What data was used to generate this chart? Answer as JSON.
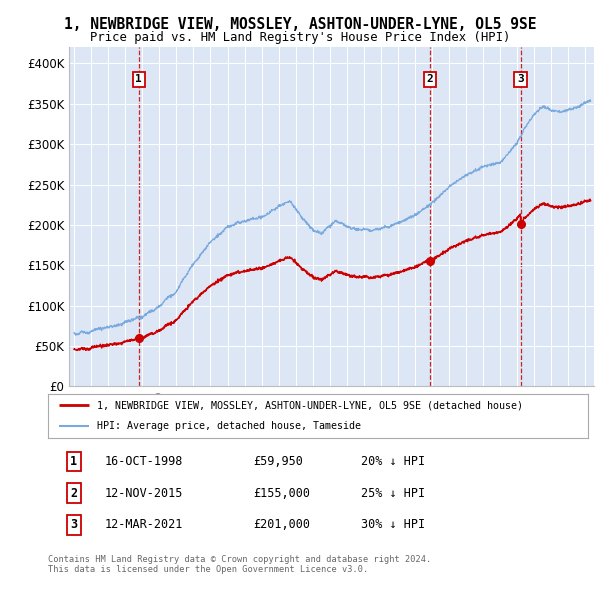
{
  "title_line1": "1, NEWBRIDGE VIEW, MOSSLEY, ASHTON-UNDER-LYNE, OL5 9SE",
  "title_line2": "Price paid vs. HM Land Registry's House Price Index (HPI)",
  "bg_color": "#dce6f5",
  "hpi_color": "#7aaadd",
  "price_color": "#cc0000",
  "vline_color": "#cc0000",
  "ylim": [
    0,
    420000
  ],
  "yticks": [
    0,
    50000,
    100000,
    150000,
    200000,
    250000,
    300000,
    350000,
    400000
  ],
  "ytick_labels": [
    "£0",
    "£50K",
    "£100K",
    "£150K",
    "£200K",
    "£250K",
    "£300K",
    "£350K",
    "£400K"
  ],
  "xmin": 1994.7,
  "xmax": 2025.5,
  "sale_dates": [
    1998.79,
    2015.87,
    2021.19
  ],
  "sale_prices": [
    59950,
    155000,
    201000
  ],
  "sale_labels": [
    "1",
    "2",
    "3"
  ],
  "legend_entry1": "1, NEWBRIDGE VIEW, MOSSLEY, ASHTON-UNDER-LYNE, OL5 9SE (detached house)",
  "legend_entry2": "HPI: Average price, detached house, Tameside",
  "table_rows": [
    [
      "1",
      "16-OCT-1998",
      "£59,950",
      "20% ↓ HPI"
    ],
    [
      "2",
      "12-NOV-2015",
      "£155,000",
      "25% ↓ HPI"
    ],
    [
      "3",
      "12-MAR-2021",
      "£201,000",
      "30% ↓ HPI"
    ]
  ],
  "footer": "Contains HM Land Registry data © Crown copyright and database right 2024.\nThis data is licensed under the Open Government Licence v3.0."
}
